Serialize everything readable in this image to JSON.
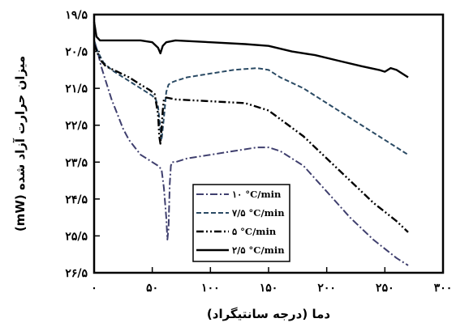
{
  "chart_data": {
    "type": "line",
    "title": "",
    "xlabel": "دما (درجه سانتیگراد)",
    "ylabel": "میزان حرارت آزاد شده (mW)",
    "xlim": [
      0,
      300
    ],
    "ylim": [
      19.5,
      26.5
    ],
    "y_inverted": true,
    "grid": false,
    "legend_position": "bottom-right",
    "x_tick_labels": [
      "۰",
      "۵۰",
      "۱۰۰",
      "۱۵۰",
      "۲۰۰",
      "۲۵۰",
      "۳۰۰"
    ],
    "x_tick_values": [
      0,
      50,
      100,
      150,
      200,
      250,
      300
    ],
    "y_tick_labels": [
      "۱۹/۵",
      "۲۰/۵",
      "۲۱/۵",
      "۲۲/۵",
      "۲۳/۵",
      "۲۴/۵",
      "۲۵/۵",
      "۲۶/۵"
    ],
    "y_tick_values": [
      19.5,
      20.5,
      21.5,
      22.5,
      23.5,
      24.5,
      25.5,
      26.5
    ],
    "series": [
      {
        "name": "۱۰ °C/min",
        "color": "#3f3f6e",
        "dash": "dashdot",
        "x": [
          0,
          3,
          6,
          10,
          15,
          20,
          25,
          30,
          35,
          40,
          45,
          50,
          55,
          58,
          60,
          62,
          63,
          64,
          65,
          66,
          67,
          70,
          80,
          100,
          120,
          140,
          150,
          160,
          180,
          200,
          220,
          240,
          260,
          270
        ],
        "y": [
          20.2,
          20.5,
          20.9,
          21.3,
          21.8,
          22.2,
          22.6,
          22.9,
          23.1,
          23.3,
          23.4,
          23.5,
          23.6,
          23.7,
          24.2,
          25.0,
          25.6,
          25.3,
          24.1,
          23.6,
          23.5,
          23.5,
          23.4,
          23.3,
          23.2,
          23.1,
          23.1,
          23.2,
          23.6,
          24.3,
          25.0,
          25.6,
          26.1,
          26.3
        ]
      },
      {
        "name": "۷/۵ °C/min",
        "color": "#2a4a64",
        "dash": "dashed",
        "x": [
          0,
          3,
          8,
          15,
          25,
          35,
          45,
          50,
          53,
          55,
          57,
          58,
          60,
          62,
          64,
          66,
          70,
          80,
          100,
          120,
          140,
          150,
          160,
          180,
          200,
          220,
          240,
          260,
          270
        ],
        "y": [
          20.2,
          20.5,
          20.8,
          21.0,
          21.2,
          21.4,
          21.6,
          21.7,
          21.8,
          22.0,
          22.6,
          22.9,
          22.3,
          21.6,
          21.4,
          21.35,
          21.3,
          21.2,
          21.1,
          21.0,
          20.95,
          21.0,
          21.2,
          21.5,
          21.9,
          22.3,
          22.7,
          23.1,
          23.3
        ]
      },
      {
        "name": "۵ °C/min",
        "color": "#000000",
        "dash": "dashdotdot",
        "x": [
          0,
          3,
          6,
          10,
          20,
          30,
          40,
          48,
          52,
          55,
          56,
          57,
          58,
          59,
          60,
          62,
          70,
          100,
          130,
          150,
          180,
          210,
          240,
          260,
          270
        ],
        "y": [
          20.3,
          20.55,
          20.75,
          20.9,
          21.05,
          21.2,
          21.4,
          21.55,
          21.65,
          22.2,
          22.8,
          23.0,
          22.6,
          22.1,
          21.8,
          21.75,
          21.8,
          21.85,
          21.9,
          22.1,
          22.8,
          23.7,
          24.6,
          25.1,
          25.4
        ]
      },
      {
        "name": "۲/۵ °C/min",
        "color": "#000000",
        "dash": "solid",
        "x": [
          0,
          2,
          5,
          10,
          20,
          40,
          50,
          55,
          57,
          59,
          62,
          70,
          100,
          130,
          150,
          170,
          190,
          210,
          230,
          245,
          250,
          255,
          260,
          270
        ],
        "y": [
          19.7,
          20.1,
          20.2,
          20.2,
          20.2,
          20.2,
          20.25,
          20.4,
          20.55,
          20.35,
          20.25,
          20.2,
          20.25,
          20.3,
          20.35,
          20.5,
          20.6,
          20.75,
          20.9,
          21.0,
          21.05,
          20.95,
          21.0,
          21.2
        ]
      }
    ]
  }
}
